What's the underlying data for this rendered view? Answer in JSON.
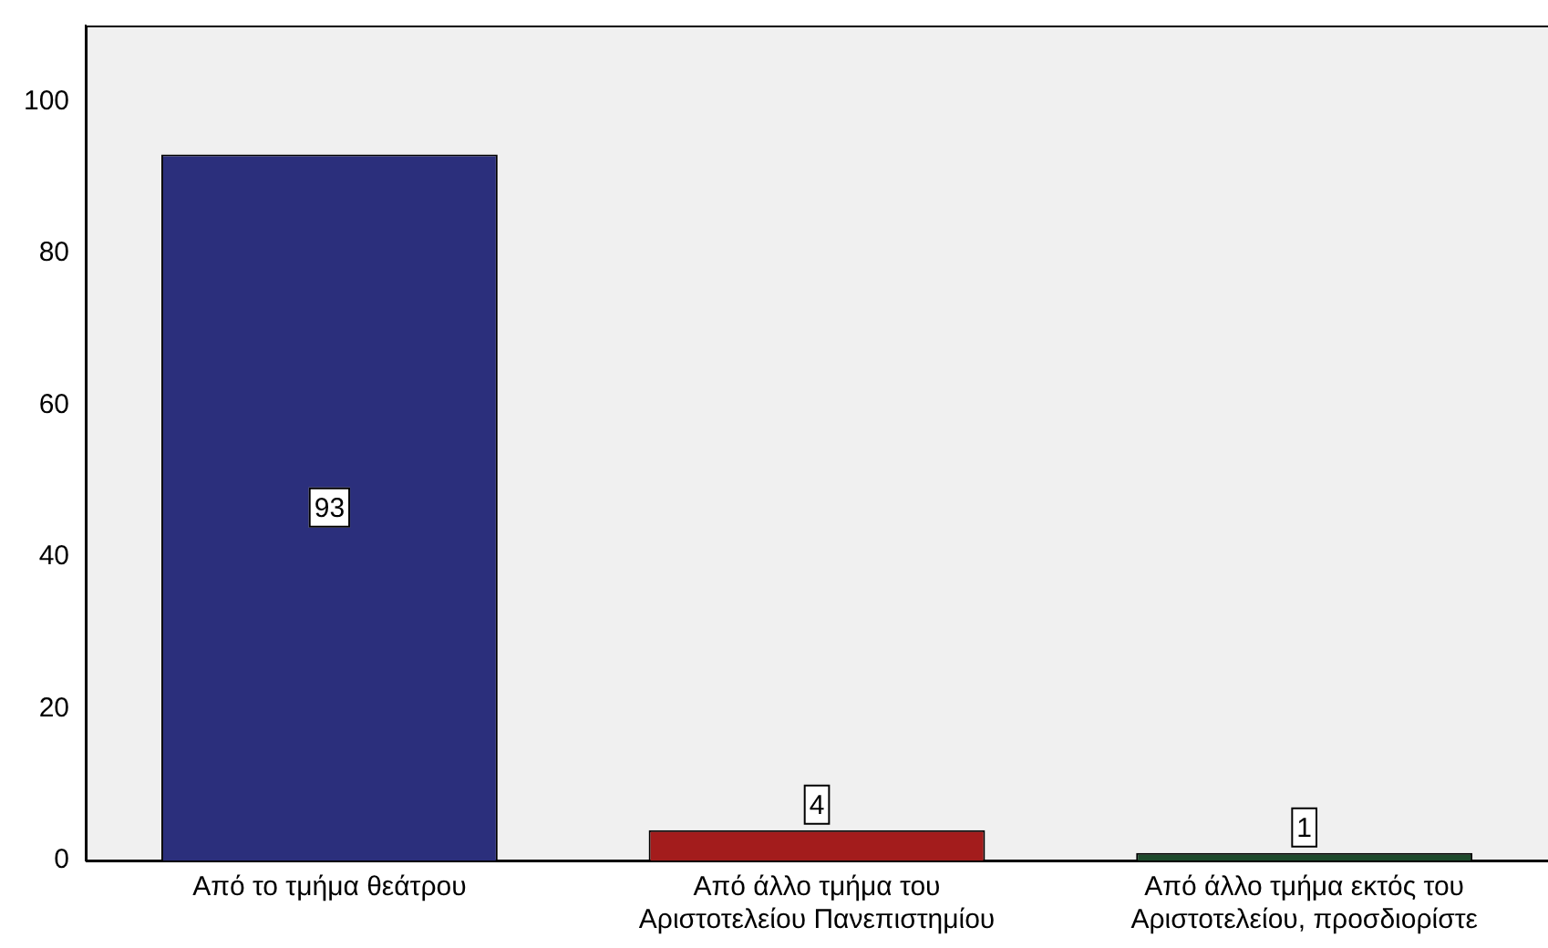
{
  "chart_data": {
    "type": "bar",
    "categories": [
      "Από το τμήμα θεάτρου",
      "Από άλλο τμήμα του Αριστοτελείου Πανεπιστημίου",
      "Από άλλο τμήμα εκτός του Αριστοτελείου, προσδιορίστε"
    ],
    "values": [
      93,
      4,
      1
    ],
    "colors": [
      "#2b2f7c",
      "#a31c1c",
      "#1e4a2c"
    ],
    "ylim": [
      0,
      110
    ],
    "yticks": [
      0,
      20,
      40,
      60,
      80,
      100
    ],
    "grid": false,
    "data_labels": true
  }
}
